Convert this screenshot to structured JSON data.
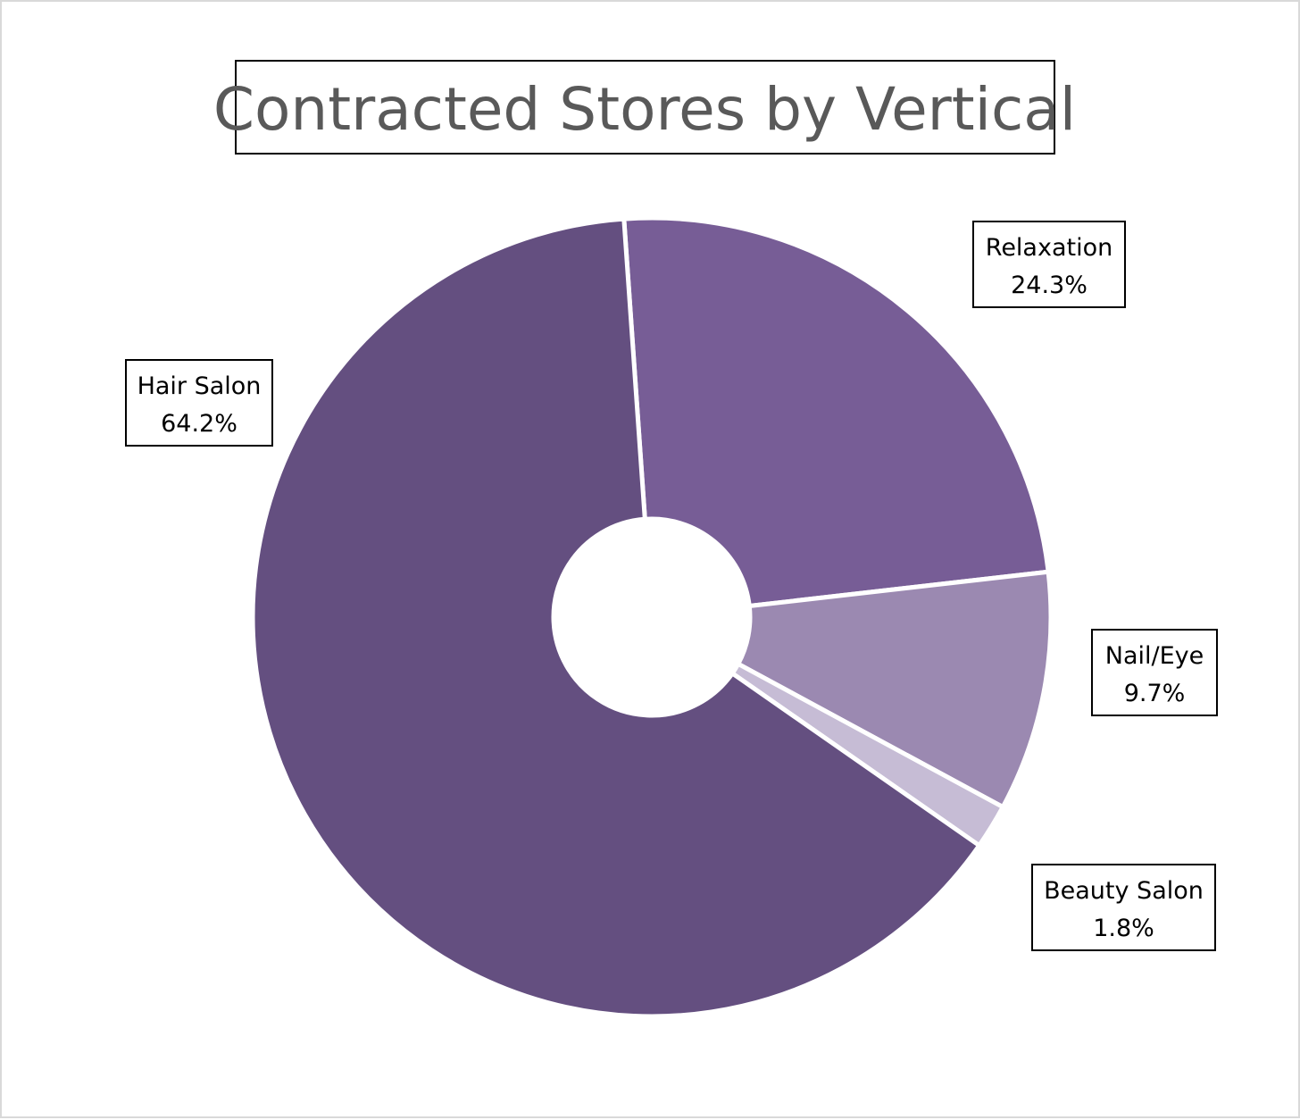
{
  "chart_data": {
    "type": "pie",
    "title": "Contracted Stores by Vertical",
    "hole": true,
    "slices": [
      {
        "label": "Relaxation",
        "value": 24.3,
        "display": "24.3%",
        "color": "#775d96"
      },
      {
        "label": "Nail/Eye",
        "value": 9.7,
        "display": "9.7%",
        "color": "#9b89b1"
      },
      {
        "label": "Beauty Salon",
        "value": 1.8,
        "display": "1.8%",
        "color": "#c6bcd5"
      },
      {
        "label": "Hair Salon",
        "value": 64.2,
        "display": "64.2%",
        "color": "#644f80"
      }
    ]
  }
}
